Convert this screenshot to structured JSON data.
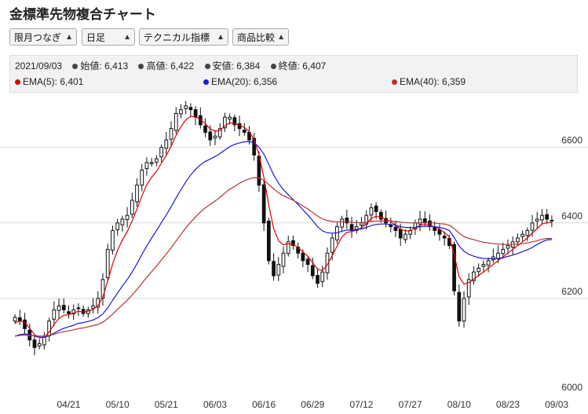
{
  "title": "金標準先物複合チャート",
  "controls": [
    {
      "name": "period-select",
      "value": "限月つなぎ"
    },
    {
      "name": "interval-select",
      "value": "日足"
    },
    {
      "name": "indicator-select",
      "value": "テクニカル指標"
    },
    {
      "name": "compare-select",
      "value": "商品比較"
    }
  ],
  "info": {
    "date": "2021/09/03",
    "open_label": "始値:",
    "open": "6,413",
    "high_label": "高値:",
    "high": "6,422",
    "low_label": "安値:",
    "low": "6,384",
    "close_label": "終値:",
    "close": "6,407",
    "ema5_label": "EMA(5):",
    "ema5": "6,401",
    "ema20_label": "EMA(20):",
    "ema20": "6,356",
    "ema40_label": "EMA(40):",
    "ema40": "6,359"
  },
  "colors": {
    "ema5": "#e00000",
    "ema20": "#1a1adc",
    "ema40": "#b83232",
    "ohlc_dot": "#444444",
    "candle": "#111111"
  },
  "chart_data": {
    "type": "candlestick",
    "title": "",
    "xlabel": "",
    "ylabel": "",
    "ylim": [
      6000,
      6720
    ],
    "yticks": [
      6000,
      6200,
      6400,
      6600
    ],
    "xticks": [
      "04/21",
      "05/10",
      "05/21",
      "06/03",
      "06/16",
      "06/29",
      "07/12",
      "07/27",
      "08/10",
      "08/23",
      "09/03"
    ],
    "xtick_index": [
      11,
      21,
      31,
      41,
      51,
      61,
      71,
      81,
      91,
      101,
      111
    ],
    "grid": true,
    "start_date": "2021-04-05",
    "end_date": "2021-09-03",
    "closes": [
      6150,
      6140,
      6120,
      6090,
      6070,
      6080,
      6100,
      6140,
      6170,
      6180,
      6170,
      6160,
      6170,
      6175,
      6160,
      6170,
      6180,
      6200,
      6250,
      6330,
      6380,
      6400,
      6410,
      6420,
      6460,
      6500,
      6540,
      6560,
      6560,
      6570,
      6600,
      6620,
      6650,
      6690,
      6700,
      6710,
      6700,
      6680,
      6660,
      6640,
      6620,
      6630,
      6650,
      6680,
      6680,
      6660,
      6650,
      6640,
      6620,
      6580,
      6500,
      6400,
      6300,
      6260,
      6290,
      6320,
      6350,
      6340,
      6320,
      6300,
      6290,
      6260,
      6240,
      6270,
      6320,
      6360,
      6390,
      6410,
      6400,
      6380,
      6390,
      6400,
      6420,
      6440,
      6430,
      6410,
      6400,
      6390,
      6380,
      6360,
      6370,
      6380,
      6400,
      6410,
      6400,
      6390,
      6380,
      6370,
      6360,
      6340,
      6220,
      6140,
      6200,
      6250,
      6270,
      6280,
      6290,
      6300,
      6310,
      6320,
      6330,
      6340,
      6350,
      6360,
      6370,
      6380,
      6400,
      6410,
      6420,
      6410,
      6407
    ],
    "series": [
      {
        "name": "EMA(5)",
        "color": "#e00000",
        "values": [
          6135,
          6140,
          6137,
          6121,
          6104,
          6096,
          6097,
          6111,
          6131,
          6147,
          6155,
          6157,
          6161,
          6166,
          6164,
          6166,
          6171,
          6181,
          6204,
          6246,
          6291,
          6327,
          6355,
          6377,
          6405,
          6437,
          6471,
          6501,
          6521,
          6537,
          6558,
          6579,
          6603,
          6632,
          6655,
          6673,
          6682,
          6681,
          6674,
          6663,
          6649,
          6643,
          6645,
          6657,
          6665,
          6663,
          6659,
          6653,
          6642,
          6621,
          6581,
          6521,
          6447,
          6385,
          6353,
          6342,
          6345,
          6343,
          6335,
          6323,
          6312,
          6295,
          6277,
          6274,
          6289,
          6313,
          6339,
          6363,
          6375,
          6377,
          6381,
          6387,
          6398,
          6412,
          6418,
          6415,
          6410,
          6403,
          6395,
          6383,
          6379,
          6379,
          6386,
          6394,
          6396,
          6394,
          6389,
          6383,
          6375,
          6363,
          6316,
          6257,
          6238,
          6242,
          6251,
          6261,
          6270,
          6280,
          6290,
          6300,
          6310,
          6320,
          6330,
          6340,
          6350,
          6360,
          6373,
          6385,
          6397,
          6401,
          6401
        ]
      },
      {
        "name": "EMA(20)",
        "color": "#1a1adc",
        "values": [
          6100,
          6104,
          6106,
          6104,
          6100,
          6097,
          6097,
          6101,
          6108,
          6115,
          6121,
          6125,
          6129,
          6134,
          6136,
          6139,
          6143,
          6149,
          6159,
          6175,
          6195,
          6214,
          6233,
          6250,
          6270,
          6292,
          6316,
          6339,
          6360,
          6380,
          6401,
          6421,
          6443,
          6466,
          6488,
          6509,
          6527,
          6542,
          6554,
          6563,
          6569,
          6576,
          6584,
          6593,
          6602,
          6608,
          6612,
          6615,
          6616,
          6612,
          6601,
          6582,
          6555,
          6527,
          6505,
          6488,
          6475,
          6462,
          6449,
          6435,
          6421,
          6406,
          6390,
          6379,
          6374,
          6373,
          6374,
          6378,
          6381,
          6381,
          6383,
          6384,
          6388,
          6393,
          6396,
          6397,
          6397,
          6396,
          6394,
          6390,
          6388,
          6387,
          6388,
          6390,
          6391,
          6391,
          6390,
          6388,
          6385,
          6380,
          6361,
          6339,
          6325,
          6317,
          6312,
          6308,
          6306,
          6305,
          6305,
          6306,
          6308,
          6311,
          6315,
          6319,
          6324,
          6329,
          6335,
          6343,
          6350,
          6355,
          6356
        ]
      },
      {
        "name": "EMA(40)",
        "color": "#b83232",
        "values": [
          6100,
          6102,
          6103,
          6102,
          6101,
          6100,
          6100,
          6102,
          6105,
          6109,
          6112,
          6114,
          6117,
          6120,
          6122,
          6125,
          6128,
          6131,
          6137,
          6147,
          6158,
          6171,
          6183,
          6195,
          6209,
          6224,
          6240,
          6256,
          6271,
          6286,
          6302,
          6318,
          6334,
          6352,
          6370,
          6387,
          6402,
          6416,
          6429,
          6440,
          6449,
          6458,
          6468,
          6479,
          6489,
          6497,
          6505,
          6512,
          6517,
          6520,
          6519,
          6513,
          6502,
          6490,
          6480,
          6472,
          6466,
          6460,
          6453,
          6445,
          6437,
          6428,
          6418,
          6411,
          6406,
          6404,
          6403,
          6403,
          6403,
          6402,
          6401,
          6401,
          6402,
          6404,
          6405,
          6405,
          6405,
          6405,
          6404,
          6402,
          6401,
          6400,
          6400,
          6401,
          6401,
          6400,
          6400,
          6398,
          6397,
          6394,
          6385,
          6373,
          6364,
          6359,
          6356,
          6352,
          6349,
          6347,
          6345,
          6344,
          6343,
          6343,
          6343,
          6344,
          6345,
          6347,
          6350,
          6353,
          6357,
          6359,
          6359
        ]
      }
    ]
  }
}
